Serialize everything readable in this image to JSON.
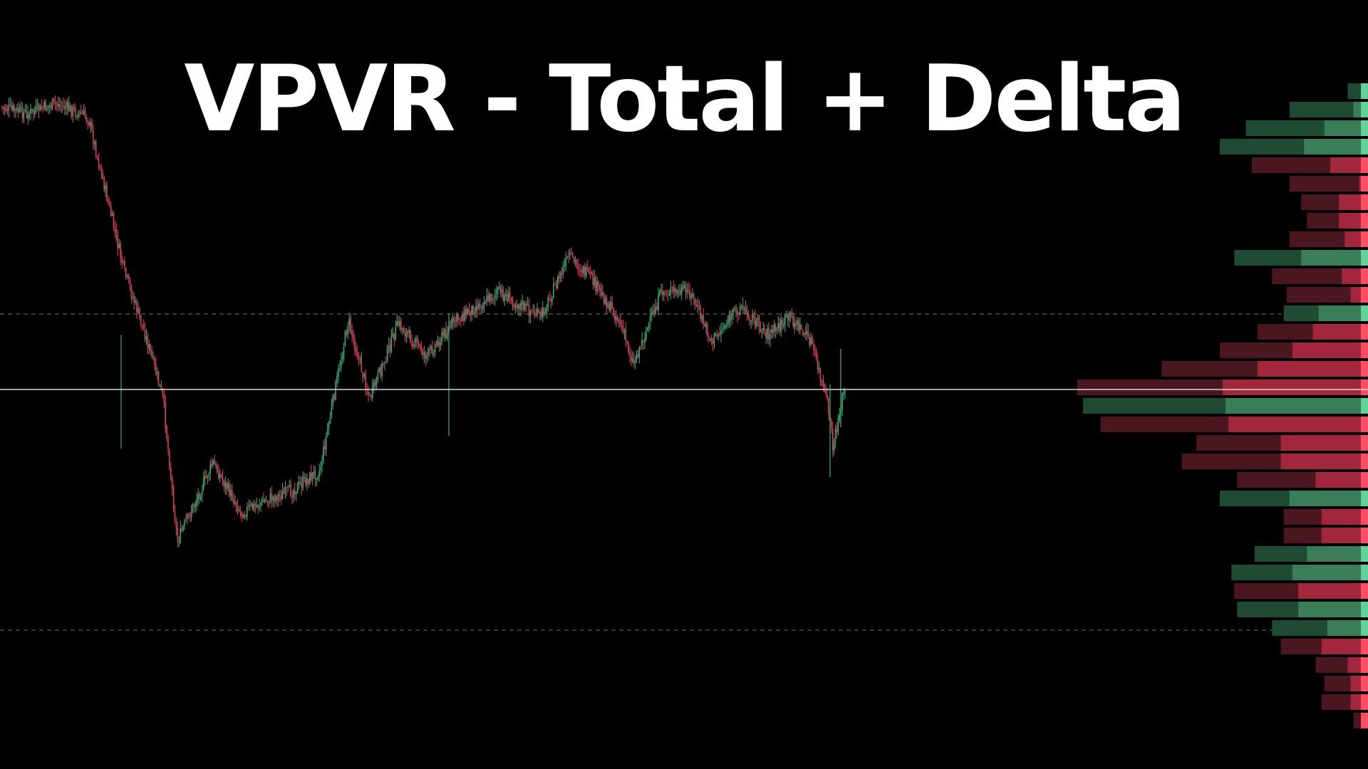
{
  "chart_data": {
    "type": "candlestick",
    "title": "VPVR - Total + Delta",
    "xlabel": "",
    "ylabel": "",
    "grid": false,
    "colors": {
      "background": "#000000",
      "bull": "#3fae7a",
      "bear": "#e0455f",
      "poc_line": "#d9d9d9",
      "value_area_line": "#777777",
      "profile_total_bull": "#1f4a33",
      "profile_total_bear": "#4a1620",
      "profile_delta_bull": "#3a7d57",
      "profile_delta_bear": "#a3273c",
      "profile_edge_bull": "#5fd39a",
      "profile_edge_bear": "#ff4d66"
    },
    "ylim": [
      0,
      1080
    ],
    "price_path": [
      [
        0,
        150
      ],
      [
        40,
        160
      ],
      [
        80,
        145
      ],
      [
        125,
        165
      ],
      [
        145,
        250
      ],
      [
        175,
        380
      ],
      [
        205,
        470
      ],
      [
        230,
        560
      ],
      [
        250,
        760
      ],
      [
        300,
        650
      ],
      [
        340,
        720
      ],
      [
        380,
        700
      ],
      [
        410,
        690
      ],
      [
        450,
        660
      ],
      [
        490,
        450
      ],
      [
        520,
        560
      ],
      [
        560,
        455
      ],
      [
        600,
        500
      ],
      [
        640,
        450
      ],
      [
        700,
        410
      ],
      [
        760,
        445
      ],
      [
        800,
        360
      ],
      [
        830,
        390
      ],
      [
        870,
        450
      ],
      [
        890,
        510
      ],
      [
        930,
        410
      ],
      [
        970,
        410
      ],
      [
        1000,
        480
      ],
      [
        1040,
        430
      ],
      [
        1080,
        470
      ],
      [
        1110,
        445
      ],
      [
        1140,
        480
      ],
      [
        1165,
        580
      ],
      [
        1170,
        630
      ],
      [
        1185,
        550
      ]
    ],
    "candle_count": 620,
    "poc_level": 547,
    "value_area": [
      441,
      885
    ],
    "profile": {
      "row_height": 24,
      "rows": [
        {
          "y": 129,
          "total": 0.07,
          "delta": -0.02,
          "dir": "bull"
        },
        {
          "y": 155,
          "total": 0.27,
          "delta": -0.05,
          "dir": "bull"
        },
        {
          "y": 181,
          "total": 0.42,
          "delta": -0.15,
          "dir": "bull"
        },
        {
          "y": 207,
          "total": 0.51,
          "delta": -0.22,
          "dir": "bull"
        },
        {
          "y": 233,
          "total": 0.4,
          "delta": -0.13,
          "dir": "bear"
        },
        {
          "y": 259,
          "total": 0.27,
          "delta": -0.03,
          "dir": "bear"
        },
        {
          "y": 285,
          "total": 0.23,
          "delta": -0.1,
          "dir": "bear"
        },
        {
          "y": 311,
          "total": 0.21,
          "delta": -0.1,
          "dir": "bear"
        },
        {
          "y": 337,
          "total": 0.27,
          "delta": -0.08,
          "dir": "bear"
        },
        {
          "y": 363,
          "total": 0.46,
          "delta": -0.23,
          "dir": "bull"
        },
        {
          "y": 389,
          "total": 0.33,
          "delta": -0.09,
          "dir": "bear"
        },
        {
          "y": 415,
          "total": 0.28,
          "delta": -0.06,
          "dir": "bear"
        },
        {
          "y": 441,
          "total": 0.29,
          "delta": -0.17,
          "dir": "bull"
        },
        {
          "y": 467,
          "total": 0.38,
          "delta": -0.19,
          "dir": "bear"
        },
        {
          "y": 493,
          "total": 0.51,
          "delta": -0.26,
          "dir": "bear"
        },
        {
          "y": 519,
          "total": 0.71,
          "delta": -0.38,
          "dir": "bear"
        },
        {
          "y": 545,
          "total": 1.0,
          "delta": -0.5,
          "dir": "bear"
        },
        {
          "y": 571,
          "total": 0.98,
          "delta": -0.49,
          "dir": "bull"
        },
        {
          "y": 597,
          "total": 0.92,
          "delta": -0.48,
          "dir": "bear"
        },
        {
          "y": 623,
          "total": 0.59,
          "delta": -0.3,
          "dir": "bear"
        },
        {
          "y": 649,
          "total": 0.64,
          "delta": -0.3,
          "dir": "bear"
        },
        {
          "y": 675,
          "total": 0.45,
          "delta": -0.18,
          "dir": "bear"
        },
        {
          "y": 701,
          "total": 0.51,
          "delta": -0.27,
          "dir": "bull"
        },
        {
          "y": 727,
          "total": 0.29,
          "delta": -0.16,
          "dir": "bear"
        },
        {
          "y": 753,
          "total": 0.29,
          "delta": -0.16,
          "dir": "bear"
        },
        {
          "y": 779,
          "total": 0.39,
          "delta": -0.21,
          "dir": "bull"
        },
        {
          "y": 805,
          "total": 0.47,
          "delta": -0.26,
          "dir": "bull"
        },
        {
          "y": 831,
          "total": 0.46,
          "delta": -0.24,
          "dir": "bear"
        },
        {
          "y": 857,
          "total": 0.45,
          "delta": -0.24,
          "dir": "bull"
        },
        {
          "y": 883,
          "total": 0.33,
          "delta": -0.14,
          "dir": "bull"
        },
        {
          "y": 909,
          "total": 0.3,
          "delta": -0.16,
          "dir": "bear"
        },
        {
          "y": 935,
          "total": 0.18,
          "delta": -0.07,
          "dir": "bear"
        },
        {
          "y": 961,
          "total": 0.15,
          "delta": -0.06,
          "dir": "bear"
        },
        {
          "y": 987,
          "total": 0.16,
          "delta": -0.06,
          "dir": "bear"
        },
        {
          "y": 1013,
          "total": 0.05,
          "delta": -0.02,
          "dir": "bear"
        }
      ]
    }
  }
}
